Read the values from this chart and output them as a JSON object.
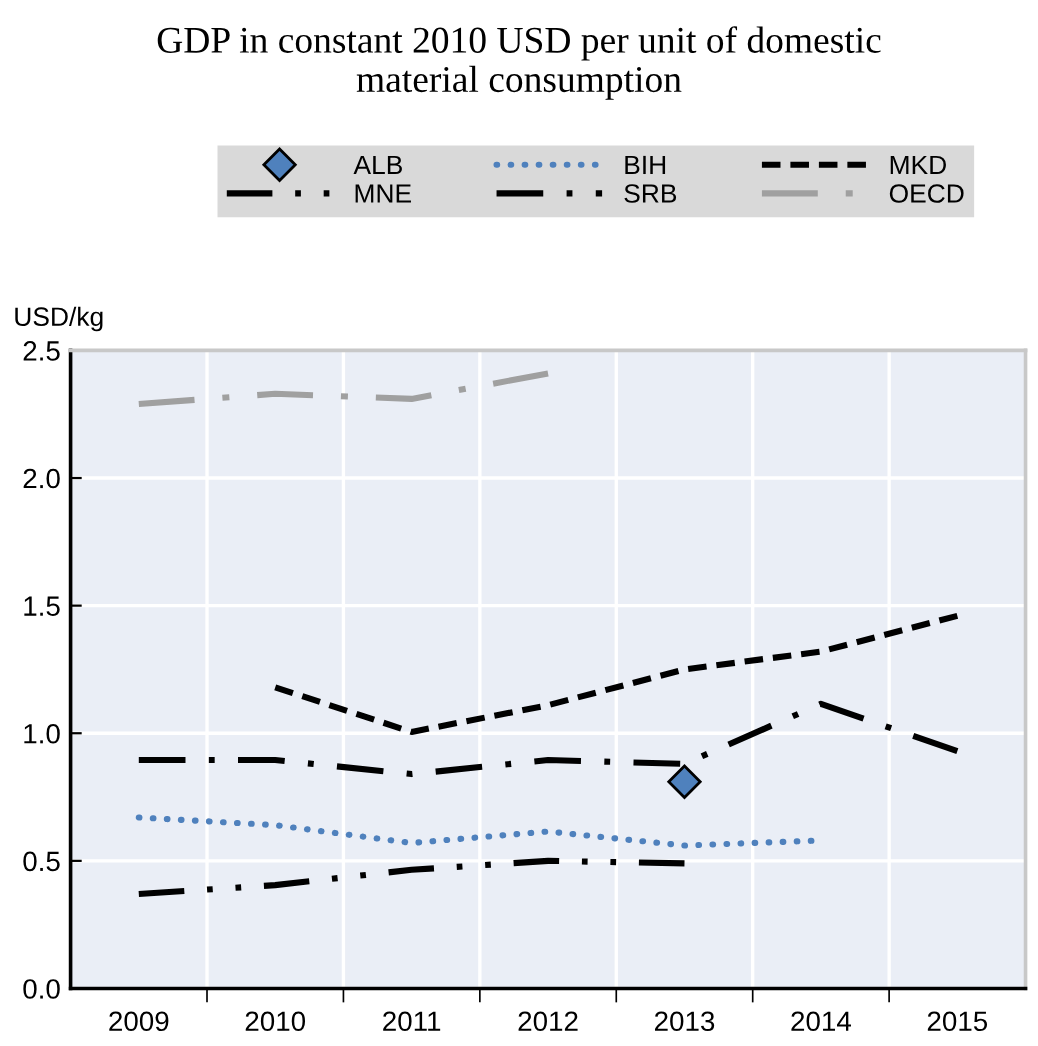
{
  "chart_data": {
    "type": "line",
    "title": "GDP in constant 2010 USD per unit of domestic material consumption",
    "ylabel": "USD/kg",
    "categories": [
      "2009",
      "2010",
      "2011",
      "2012",
      "2013",
      "2014",
      "2015"
    ],
    "series": [
      {
        "name": "ALB",
        "type": "scatter",
        "marker": "diamond",
        "color": "#4f81bd",
        "values": [
          null,
          null,
          null,
          null,
          0.81,
          null,
          null
        ]
      },
      {
        "name": "BIH",
        "line_style": "dotted",
        "color": "#4f81bd",
        "values": [
          0.67,
          0.64,
          0.57,
          0.615,
          0.56,
          0.58,
          null
        ]
      },
      {
        "name": "MKD",
        "line_style": "dashed",
        "color": "#000000",
        "values": [
          null,
          1.18,
          1.005,
          1.11,
          1.25,
          1.32,
          1.46
        ]
      },
      {
        "name": "MNE",
        "line_style": "dashdotdot",
        "color": "#000000",
        "values": [
          0.37,
          0.405,
          0.465,
          0.5,
          0.49,
          null,
          null
        ]
      },
      {
        "name": "SRB",
        "line_style": "dashdot",
        "color": "#000000",
        "values": [
          0.895,
          0.895,
          0.84,
          0.895,
          0.88,
          1.115,
          0.93
        ]
      },
      {
        "name": "OECD",
        "line_style": "dashdot",
        "color": "#a0a0a0",
        "values": [
          2.29,
          2.33,
          2.31,
          2.41,
          null,
          null,
          null
        ]
      }
    ],
    "ylim": [
      0,
      2.5
    ],
    "yticks": [
      {
        "value": 0,
        "label": "0.0"
      },
      {
        "value": 0.5,
        "label": "0.5"
      },
      {
        "value": 1,
        "label": "1.0"
      },
      {
        "value": 1.5,
        "label": "1.5"
      },
      {
        "value": 2,
        "label": "2.0"
      },
      {
        "value": 2.5,
        "label": "2.5"
      }
    ],
    "grid": true,
    "legend": "top"
  }
}
